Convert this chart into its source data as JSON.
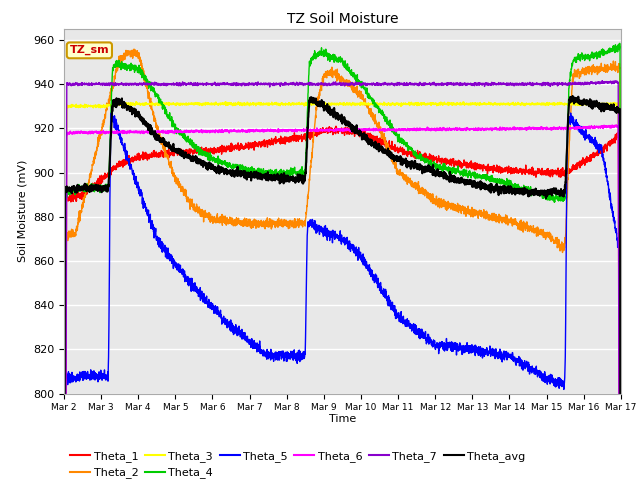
{
  "title": "TZ Soil Moisture",
  "xlabel": "Time",
  "ylabel": "Soil Moisture (mV)",
  "ylim": [
    800,
    965
  ],
  "xlim": [
    0,
    15
  ],
  "xtick_labels": [
    "Mar 2",
    "Mar 3",
    "Mar 4",
    "Mar 5",
    "Mar 6",
    "Mar 7",
    "Mar 8",
    "Mar 9",
    "Mar 10",
    "Mar 11",
    "Mar 12",
    "Mar 13",
    "Mar 14",
    "Mar 15",
    "Mar 16",
    "Mar 17"
  ],
  "bg_color": "#e8e8e8",
  "colors": {
    "Theta_1": "#ff0000",
    "Theta_2": "#ff8800",
    "Theta_3": "#ffff00",
    "Theta_4": "#00cc00",
    "Theta_5": "#0000ff",
    "Theta_6": "#ff00ff",
    "Theta_7": "#8800cc",
    "Theta_avg": "#000000"
  },
  "yticks": [
    800,
    820,
    840,
    860,
    880,
    900,
    920,
    940,
    960
  ],
  "legend_ncol_row1": 6,
  "legend_ncol_row2": 2
}
